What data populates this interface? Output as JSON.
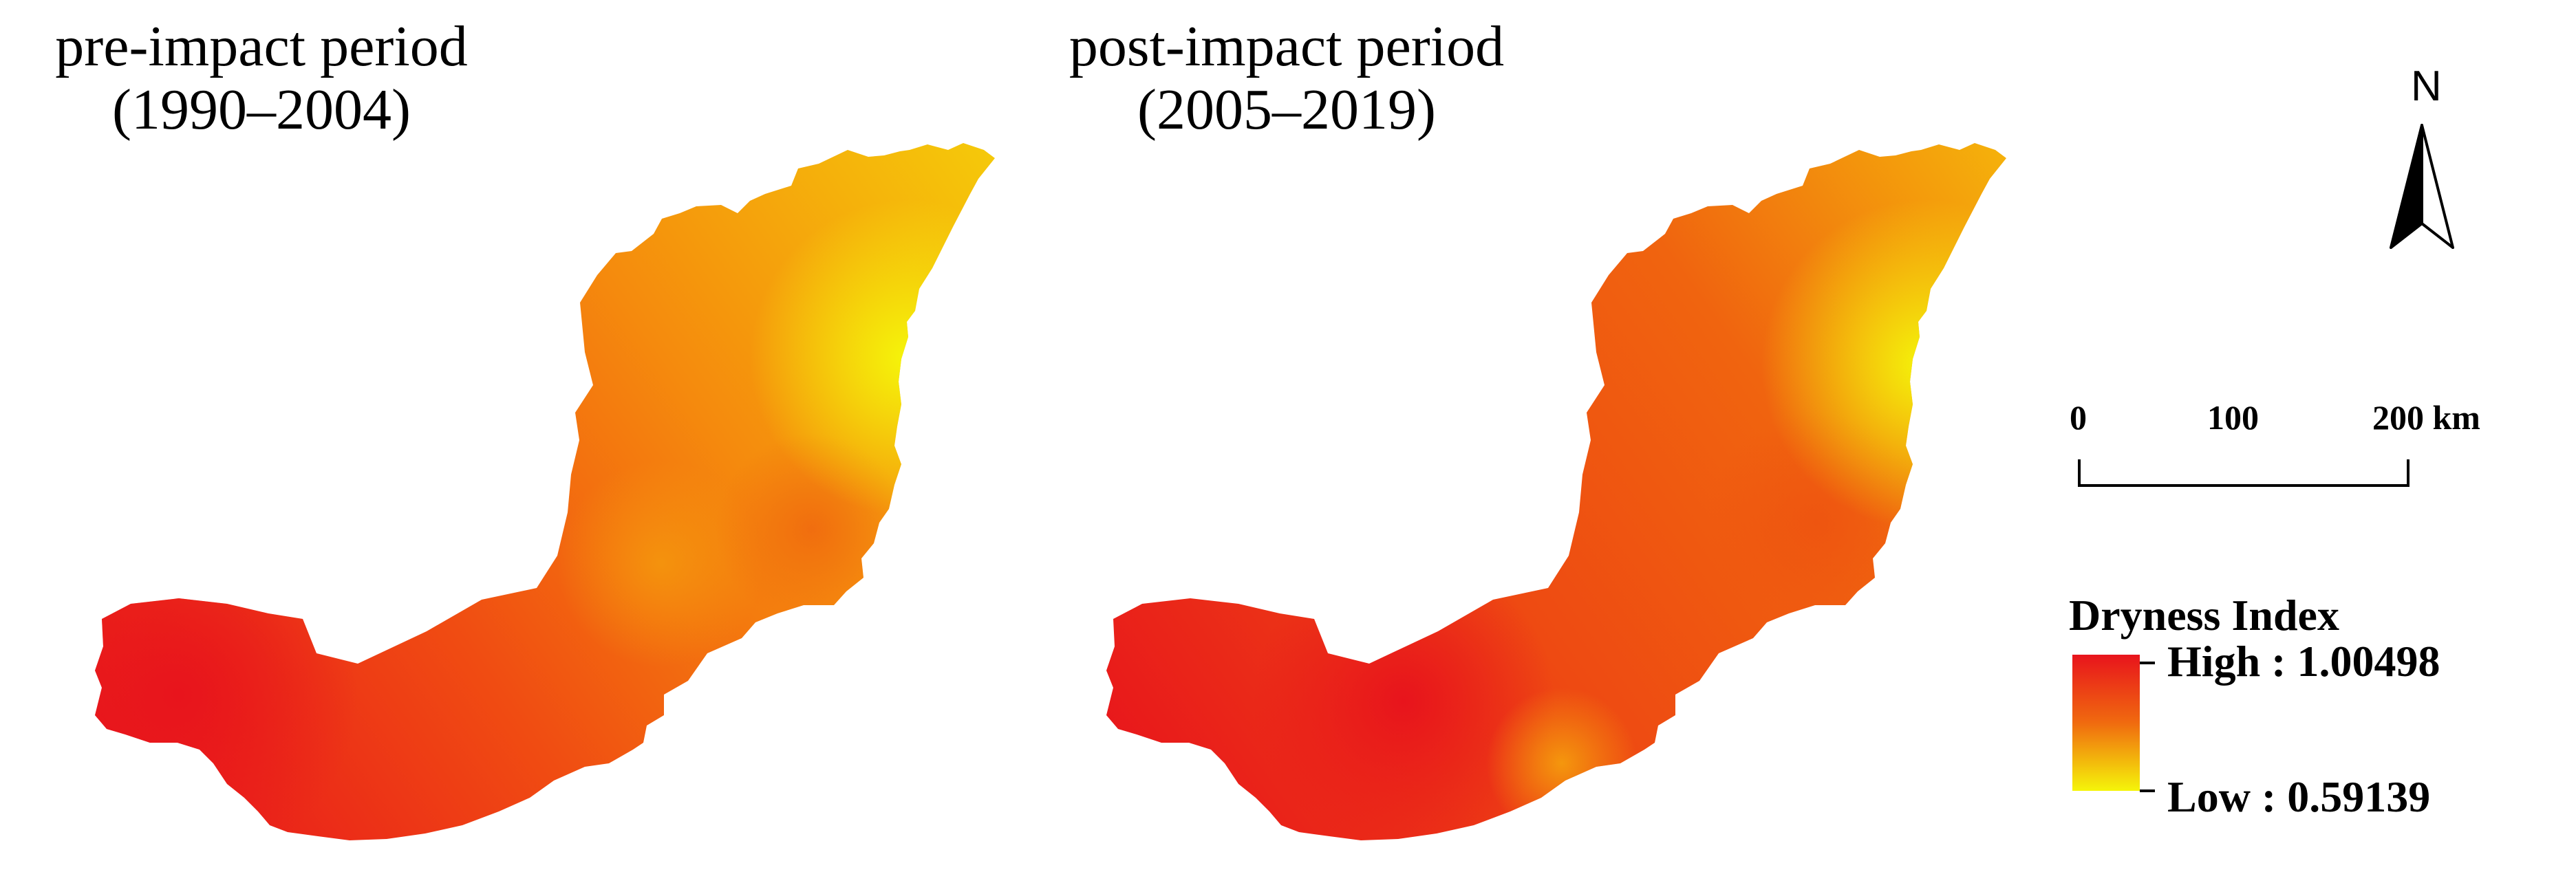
{
  "panels": [
    {
      "title_line1": "pre-impact period",
      "title_line2": "(1990–2004)"
    },
    {
      "title_line1": "post-impact period",
      "title_line2": "(2005–2019)"
    }
  ],
  "north_arrow": {
    "label": "N",
    "icon": "north-arrow-icon"
  },
  "scale_bar": {
    "labels": [
      "0",
      "100",
      "200 km"
    ]
  },
  "legend": {
    "title": "Dryness Index",
    "high_label": "High : 1.00498",
    "low_label": "Low : 0.59139",
    "colors": {
      "high": "#e8141c",
      "mid": "#f06a0f",
      "low": "#f5f50a"
    }
  }
}
